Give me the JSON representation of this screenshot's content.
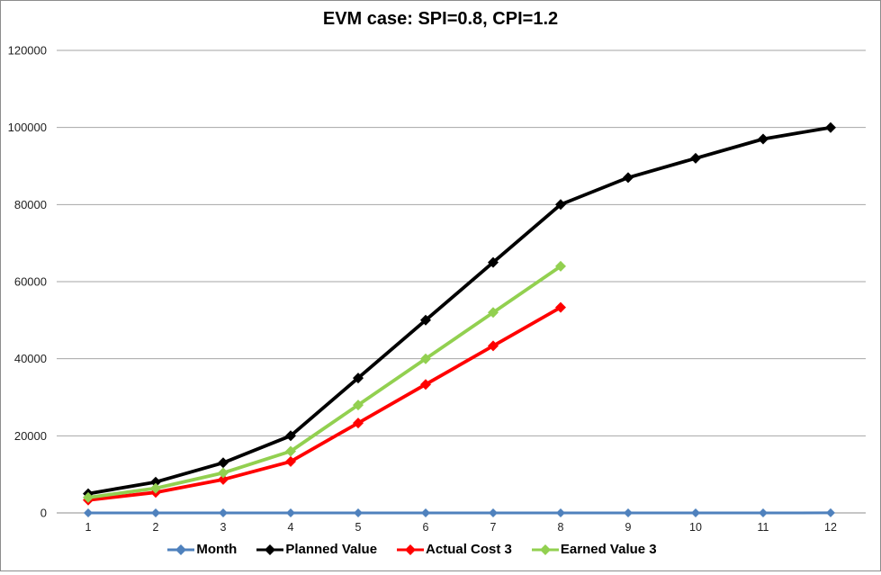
{
  "title": "EVM case: SPI=0.8, CPI=1.2",
  "styles": {
    "gridline_color": "#a6a6a6",
    "axis_line_color": "#8c8c8c",
    "tick_text_color": "#1f1f1f",
    "background": "#ffffff",
    "month_series_color": "#4f81bd",
    "planned_value_color": "#000000",
    "actual_cost_color": "#ff0000",
    "earned_value_color": "#92d050"
  },
  "chart_data": {
    "type": "line",
    "title": "EVM case: SPI=0.8, CPI=1.2",
    "xlabel": "",
    "ylabel": "",
    "x": [
      1,
      2,
      3,
      4,
      5,
      6,
      7,
      8,
      9,
      10,
      11,
      12
    ],
    "xticks": [
      "1",
      "2",
      "3",
      "4",
      "5",
      "6",
      "7",
      "8",
      "9",
      "10",
      "11",
      "12"
    ],
    "yticks": [
      "0",
      "20000",
      "40000",
      "60000",
      "80000",
      "100000",
      "120000"
    ],
    "ylim": [
      0,
      120000
    ],
    "ytick_step": 20000,
    "grid": true,
    "legend_position": "bottom",
    "marker": "diamond",
    "series": [
      {
        "name": "Month",
        "color": "#4f81bd",
        "values": [
          1,
          2,
          3,
          4,
          5,
          6,
          7,
          8,
          9,
          10,
          11,
          12
        ]
      },
      {
        "name": "Planned Value",
        "color": "#000000",
        "values": [
          5000,
          8000,
          13000,
          20000,
          35000,
          50000,
          65000,
          80000,
          87000,
          92000,
          97000,
          100000
        ]
      },
      {
        "name": "Actual Cost 3",
        "color": "#ff0000",
        "values": [
          3333,
          5333,
          8667,
          13333,
          23333,
          33333,
          43333,
          53333
        ]
      },
      {
        "name": "Earned Value 3",
        "color": "#92d050",
        "values": [
          4000,
          6400,
          10400,
          16000,
          28000,
          40000,
          52000,
          64000
        ]
      }
    ]
  }
}
